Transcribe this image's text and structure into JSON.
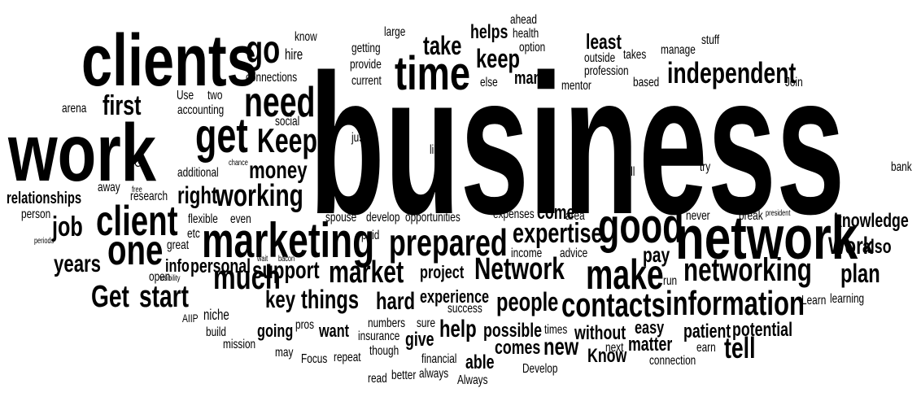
{
  "words": [
    "business",
    "work",
    "clients",
    "network",
    "time",
    "marketing",
    "good",
    "client",
    "one",
    "prepared",
    "information",
    "get",
    "Keep",
    "go",
    "need",
    "make",
    "networking",
    "contacts",
    "much",
    "Network",
    "market",
    "independent",
    "money",
    "working",
    "Get",
    "start",
    "job",
    "first",
    "take",
    "keep",
    "expertise",
    "plan",
    "Work",
    "people",
    "tell",
    "years",
    "support",
    "things",
    "key",
    "hard",
    "help",
    "new",
    "right",
    "knowledge",
    "least",
    "helps",
    "many",
    "also",
    "pay",
    "personal",
    "info",
    "relationships",
    "come",
    "project",
    "experience",
    "possible",
    "potential",
    "patient",
    "matter",
    "Know",
    "comes",
    "without",
    "able",
    "give",
    "going",
    "want",
    "easy",
    "ahead",
    "health",
    "option",
    "outside",
    "takes",
    "manage",
    "stuff",
    "profession",
    "based",
    "mentor",
    "large",
    "getting",
    "provide",
    "current",
    "else",
    "hire",
    "know",
    "connections",
    "Use",
    "two",
    "accounting",
    "arena",
    "social",
    "Go",
    "additional",
    "away",
    "research",
    "flexible",
    "even",
    "etc",
    "great",
    "open",
    "person",
    "spouse",
    "develop",
    "opportunities",
    "expenses",
    "area",
    "break",
    "never",
    "income",
    "advice",
    "paid",
    "run",
    "success",
    "Learn",
    "learning",
    "numbers",
    "sure",
    "pros",
    "insurance",
    "though",
    "repeat",
    "Focus",
    "mission",
    "may",
    "build",
    "AIIP",
    "niche",
    "financial",
    "always",
    "better",
    "read",
    "Always",
    "Develop",
    "next",
    "earn",
    "connection",
    "times",
    "bank",
    "try",
    "well",
    "like",
    "just",
    "Join",
    "chance",
    "using",
    "free",
    "periods",
    "wait",
    "bacon",
    "visibility",
    "president"
  ],
  "colors": {
    "ink": "#000000",
    "background": "#ffffff"
  }
}
